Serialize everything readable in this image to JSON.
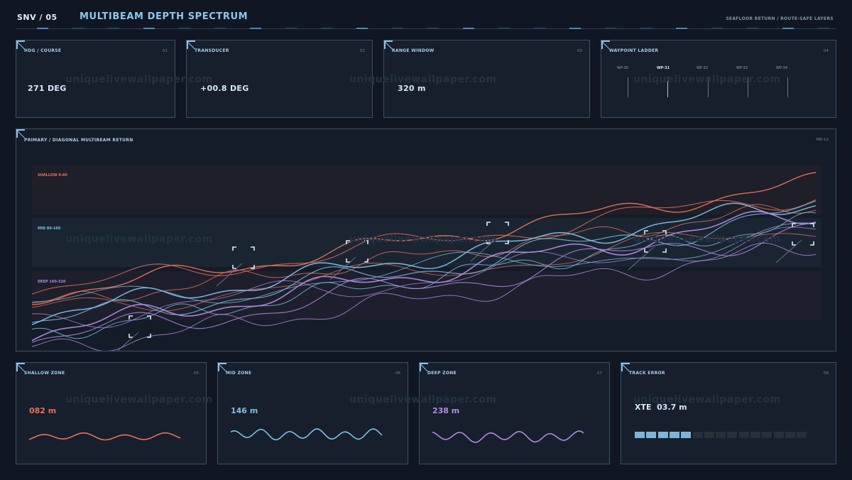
{
  "header": {
    "id": "SNV / 05",
    "title": "MULTIBEAM DEPTH SPECTRUM",
    "subtitle": "SEAFLOOR RETURN / ROUTE-SAFE LAYERS"
  },
  "watermark": "uniquelivewallpaper.com",
  "top_panels": [
    {
      "label": "HDG / COURSE",
      "num": "01",
      "value": "271 DEG"
    },
    {
      "label": "TRANSDUCER",
      "num": "02",
      "value": "+00.8 DEG"
    },
    {
      "label": "RANGE WINDOW",
      "num": "03",
      "value": "320 m"
    },
    {
      "label": "WAYPOINT LADDER",
      "num": "04"
    }
  ],
  "waypoints": [
    {
      "label": "WP-30",
      "active": false
    },
    {
      "label": "WP-31",
      "active": true
    },
    {
      "label": "WP-32",
      "active": false
    },
    {
      "label": "WP-33",
      "active": false
    },
    {
      "label": "WP-34",
      "active": false
    }
  ],
  "main": {
    "label": "PRIMARY / DIAGONAL MULTIBEAM RETURN",
    "code": "MB-12",
    "bands": [
      {
        "label": "SHALLOW 0-80",
        "color": "#e8705d"
      },
      {
        "label": "MID 80-160",
        "color": "#7dc0e6"
      },
      {
        "label": "DEEP 160-320",
        "color": "#b08ae0"
      }
    ]
  },
  "colors": {
    "shallow": "#e8705d",
    "mid": "#7dc0e6",
    "deep": "#b08ae0",
    "accent": "#8ec6f0"
  },
  "bottom_panels": [
    {
      "label": "SHALLOW ZONE",
      "num": "05",
      "value": "082 m",
      "color": "#e8705d"
    },
    {
      "label": "MID ZONE",
      "num": "06",
      "value": "146 m",
      "color": "#7dc0e6"
    },
    {
      "label": "DEEP ZONE",
      "num": "07",
      "value": "238 m",
      "color": "#b08ae0"
    },
    {
      "label": "TRACK ERROR",
      "num": "08",
      "value": "XTE  03.7 m",
      "segments_on": 5,
      "segments_total": 15
    }
  ]
}
